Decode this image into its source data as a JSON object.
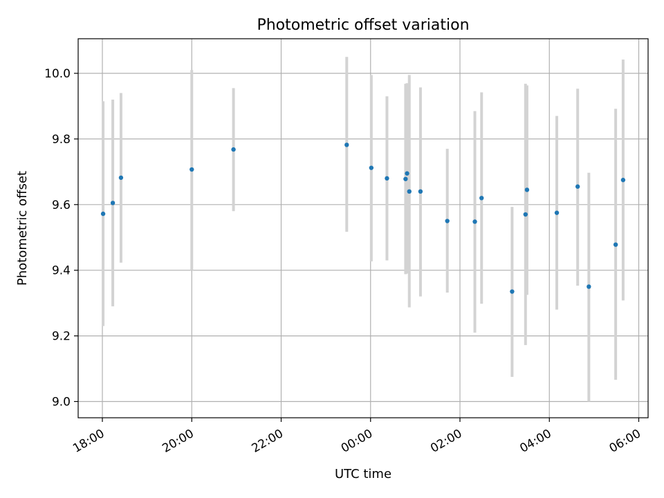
{
  "chart_data": {
    "type": "scatter",
    "title": "Photometric offset variation",
    "xlabel": "UTC time",
    "ylabel": "Photometric offset",
    "x_ticks": [
      "18:00",
      "20:00",
      "22:00",
      "00:00",
      "02:00",
      "04:00",
      "06:00"
    ],
    "y_ticks": [
      "9.0",
      "9.2",
      "9.4",
      "9.6",
      "9.8",
      "10.0"
    ],
    "grid": true,
    "point_color": "#1f77b4",
    "errorbar_color": "#d3d3d3",
    "points": [
      {
        "x": "18:01",
        "y": 9.572,
        "lo": 9.23,
        "hi": 9.915
      },
      {
        "x": "18:14",
        "y": 9.605,
        "lo": 9.29,
        "hi": 9.92
      },
      {
        "x": "18:25",
        "y": 9.682,
        "lo": 9.423,
        "hi": 9.94
      },
      {
        "x": "20:00",
        "y": 9.707,
        "lo": 9.4,
        "hi": 10.01
      },
      {
        "x": "20:56",
        "y": 9.768,
        "lo": 9.58,
        "hi": 9.955
      },
      {
        "x": "23:28",
        "y": 9.782,
        "lo": 9.517,
        "hi": 10.05
      },
      {
        "x": "00:01",
        "y": 9.712,
        "lo": 9.427,
        "hi": 9.995
      },
      {
        "x": "00:22",
        "y": 9.68,
        "lo": 9.43,
        "hi": 9.93
      },
      {
        "x": "00:47",
        "y": 9.678,
        "lo": 9.388,
        "hi": 9.968
      },
      {
        "x": "00:49",
        "y": 9.695,
        "lo": 9.39,
        "hi": 9.97
      },
      {
        "x": "00:52",
        "y": 9.64,
        "lo": 9.287,
        "hi": 9.995
      },
      {
        "x": "01:07",
        "y": 9.64,
        "lo": 9.32,
        "hi": 9.957
      },
      {
        "x": "01:43",
        "y": 9.55,
        "lo": 9.332,
        "hi": 9.77
      },
      {
        "x": "02:20",
        "y": 9.548,
        "lo": 9.21,
        "hi": 9.885
      },
      {
        "x": "02:29",
        "y": 9.62,
        "lo": 9.298,
        "hi": 9.942
      },
      {
        "x": "03:10",
        "y": 9.335,
        "lo": 9.075,
        "hi": 9.593
      },
      {
        "x": "03:28",
        "y": 9.57,
        "lo": 9.172,
        "hi": 9.968
      },
      {
        "x": "03:30",
        "y": 9.645,
        "lo": 9.325,
        "hi": 9.963
      },
      {
        "x": "04:10",
        "y": 9.575,
        "lo": 9.28,
        "hi": 9.87
      },
      {
        "x": "04:38",
        "y": 9.655,
        "lo": 9.353,
        "hi": 9.953
      },
      {
        "x": "04:53",
        "y": 9.35,
        "lo": 9.0,
        "hi": 9.697
      },
      {
        "x": "05:29",
        "y": 9.478,
        "lo": 9.066,
        "hi": 9.892
      },
      {
        "x": "05:39",
        "y": 9.675,
        "lo": 9.308,
        "hi": 10.042
      }
    ]
  }
}
